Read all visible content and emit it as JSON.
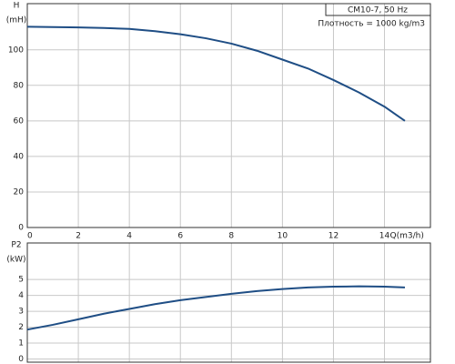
{
  "chart_data": [
    {
      "type": "line",
      "ylabel": [
        "H",
        "(mH)"
      ],
      "xlabel": "Q(m3/h)",
      "annotations": [
        "CM10-7, 50 Hz",
        "Плотность = 1000 kg/m3"
      ],
      "x": [
        0,
        1,
        2,
        3,
        4,
        5,
        6,
        7,
        8,
        9,
        10,
        11,
        12,
        13,
        14,
        14.8
      ],
      "values": [
        113,
        112.8,
        112.6,
        112.3,
        111.8,
        110.5,
        108.8,
        106.5,
        103.5,
        99.5,
        94.5,
        89.5,
        83,
        76,
        68,
        60
      ],
      "color": "#1f4e85",
      "xlim": [
        0,
        15.8
      ],
      "ylim": [
        0,
        126
      ],
      "xticks": [
        0,
        2,
        4,
        6,
        8,
        10,
        12,
        14
      ],
      "yticks": [
        0,
        20,
        40,
        60,
        80,
        100
      ],
      "grid": true
    },
    {
      "type": "line",
      "ylabel": [
        "P2",
        "(kW)"
      ],
      "x": [
        0,
        1,
        2,
        3,
        4,
        5,
        6,
        7,
        8,
        9,
        10,
        11,
        12,
        13,
        14,
        14.8
      ],
      "values": [
        1.85,
        2.15,
        2.5,
        2.85,
        3.15,
        3.45,
        3.7,
        3.9,
        4.1,
        4.27,
        4.4,
        4.5,
        4.55,
        4.57,
        4.55,
        4.5
      ],
      "color": "#1f4e85",
      "xlim": [
        0,
        15.8
      ],
      "ylim": [
        -0.2,
        7.3
      ],
      "yticks": [
        0,
        1,
        2,
        3,
        4,
        5
      ],
      "grid": true
    }
  ]
}
